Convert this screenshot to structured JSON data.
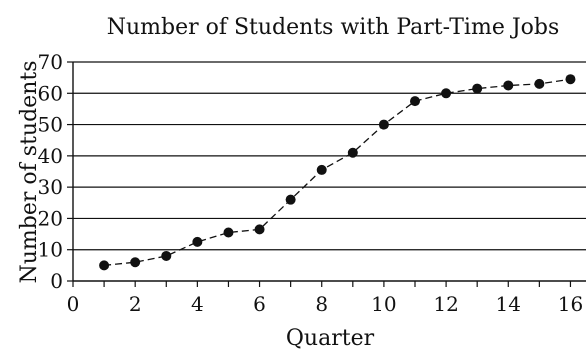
{
  "chart_data": {
    "type": "line",
    "title": "Number of Students with Part-Time Jobs",
    "xlabel": "Quarter",
    "ylabel": "Number of students",
    "xlim": [
      0,
      16.5
    ],
    "ylim": [
      0,
      70
    ],
    "x_ticks": [
      0,
      2,
      4,
      6,
      8,
      10,
      12,
      14,
      16
    ],
    "y_ticks": [
      0,
      10,
      20,
      30,
      40,
      50,
      60,
      70
    ],
    "grid": "horizontal",
    "line_style": "dashed",
    "marker": "filled-circle",
    "color": "#111111",
    "series": [
      {
        "x": [
          1,
          2,
          3,
          4,
          5,
          6,
          7,
          8,
          9,
          10,
          11,
          12,
          13,
          14,
          15,
          16
        ],
        "values": [
          5,
          6,
          8,
          12.5,
          15.5,
          16.5,
          26,
          35.5,
          41,
          50,
          57.5,
          60,
          61.5,
          62.5,
          63,
          64.5
        ]
      }
    ]
  }
}
